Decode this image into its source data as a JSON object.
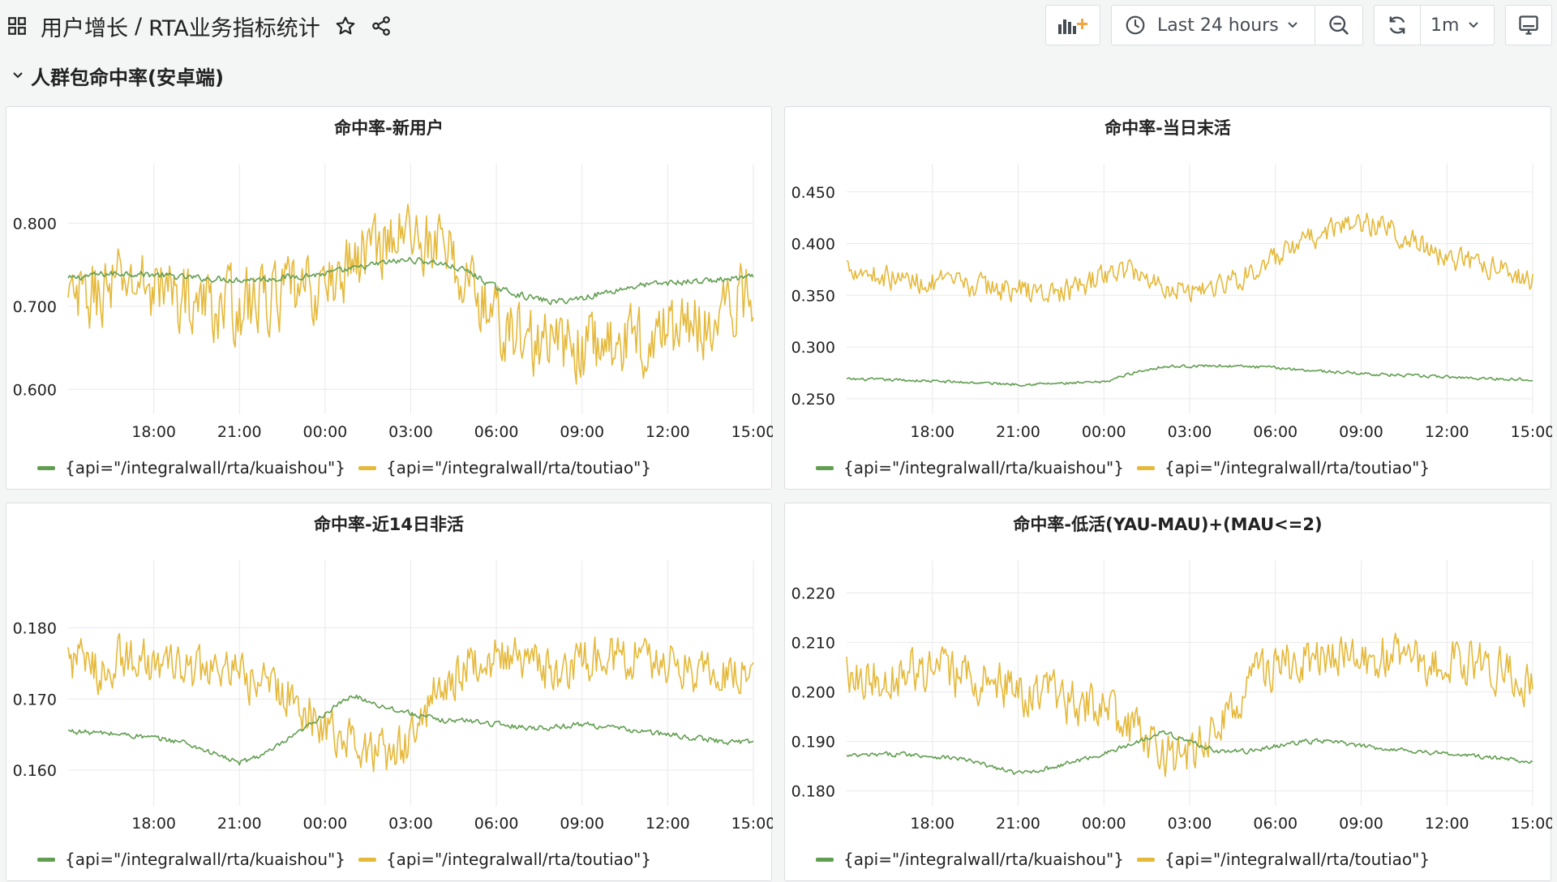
{
  "header": {
    "folder": "用户增长",
    "separator": "/",
    "dashboard": "RTA业务指标统计",
    "time_range": "Last 24 hours",
    "refresh_interval": "1m"
  },
  "row": {
    "title": "人群包命中率(安卓端)"
  },
  "legend": {
    "series_a": "{api=\"/integralwall/rta/kuaishou\"}",
    "series_b": "{api=\"/integralwall/rta/toutiao\"}"
  },
  "colors": {
    "series_a": "#629e51",
    "series_b": "#e5b93a",
    "grid": "#e9e9e9",
    "axis_text": "#222222"
  },
  "x_ticks": [
    "18:00",
    "21:00",
    "00:00",
    "03:00",
    "06:00",
    "09:00",
    "12:00",
    "15:00"
  ],
  "x_range_hours": [
    -24,
    0
  ],
  "chart_data": [
    {
      "type": "line",
      "title": "命中率-新用户",
      "ylim": [
        0.57,
        0.85
      ],
      "yticks": [
        "0.600",
        "0.700",
        "0.800"
      ],
      "ytick_values": [
        0.6,
        0.7,
        0.8
      ],
      "series": [
        {
          "name": "{api=\"/integralwall/rta/kuaishou\"}",
          "anchors": [
            [
              -24,
              0.733
            ],
            [
              -23,
              0.738
            ],
            [
              -22,
              0.74
            ],
            [
              -21,
              0.738
            ],
            [
              -20,
              0.735
            ],
            [
              -19,
              0.733
            ],
            [
              -18,
              0.732
            ],
            [
              -17,
              0.733
            ],
            [
              -16,
              0.736
            ],
            [
              -15,
              0.739
            ],
            [
              -14,
              0.745
            ],
            [
              -13,
              0.752
            ],
            [
              -12,
              0.756
            ],
            [
              -11,
              0.752
            ],
            [
              -10,
              0.742
            ],
            [
              -9,
              0.722
            ],
            [
              -8,
              0.712
            ],
            [
              -7,
              0.705
            ],
            [
              -6,
              0.71
            ],
            [
              -5,
              0.718
            ],
            [
              -4,
              0.725
            ],
            [
              -3,
              0.728
            ],
            [
              -2,
              0.73
            ],
            [
              -1,
              0.732
            ],
            [
              0,
              0.735
            ]
          ],
          "noise": 0.004
        },
        {
          "name": "{api=\"/integralwall/rta/toutiao\"}",
          "anchors": [
            [
              -24,
              0.7
            ],
            [
              -23,
              0.715
            ],
            [
              -22,
              0.73
            ],
            [
              -21,
              0.725
            ],
            [
              -20,
              0.71
            ],
            [
              -19,
              0.7
            ],
            [
              -18,
              0.7
            ],
            [
              -17,
              0.71
            ],
            [
              -16,
              0.715
            ],
            [
              -15,
              0.72
            ],
            [
              -14,
              0.755
            ],
            [
              -13,
              0.78
            ],
            [
              -12,
              0.79
            ],
            [
              -11,
              0.77
            ],
            [
              -10,
              0.73
            ],
            [
              -9,
              0.68
            ],
            [
              -8,
              0.66
            ],
            [
              -7,
              0.65
            ],
            [
              -6,
              0.65
            ],
            [
              -5,
              0.655
            ],
            [
              -4,
              0.66
            ],
            [
              -3,
              0.67
            ],
            [
              -2,
              0.68
            ],
            [
              -1,
              0.69
            ],
            [
              0,
              0.72
            ]
          ],
          "noise": 0.045
        }
      ]
    },
    {
      "type": "line",
      "title": "命中率-当日末活",
      "ylim": [
        0.235,
        0.46
      ],
      "yticks": [
        "0.250",
        "0.300",
        "0.350",
        "0.400",
        "0.450"
      ],
      "ytick_values": [
        0.25,
        0.3,
        0.35,
        0.4,
        0.45
      ],
      "series": [
        {
          "name": "{api=\"/integralwall/rta/kuaishou\"}",
          "anchors": [
            [
              -24,
              0.269
            ],
            [
              -22,
              0.268
            ],
            [
              -20,
              0.266
            ],
            [
              -18,
              0.264
            ],
            [
              -16,
              0.265
            ],
            [
              -15,
              0.266
            ],
            [
              -14,
              0.275
            ],
            [
              -13,
              0.281
            ],
            [
              -11,
              0.282
            ],
            [
              -9,
              0.28
            ],
            [
              -7,
              0.276
            ],
            [
              -5,
              0.273
            ],
            [
              -3,
              0.271
            ],
            [
              -1,
              0.269
            ],
            [
              0,
              0.269
            ]
          ],
          "noise": 0.0015
        },
        {
          "name": "{api=\"/integralwall/rta/toutiao\"}",
          "anchors": [
            [
              -24,
              0.38
            ],
            [
              -23,
              0.37
            ],
            [
              -22,
              0.365
            ],
            [
              -21,
              0.362
            ],
            [
              -20,
              0.36
            ],
            [
              -19,
              0.358
            ],
            [
              -18,
              0.355
            ],
            [
              -17,
              0.352
            ],
            [
              -16,
              0.355
            ],
            [
              -15,
              0.37
            ],
            [
              -14,
              0.375
            ],
            [
              -13,
              0.36
            ],
            [
              -12,
              0.355
            ],
            [
              -11,
              0.36
            ],
            [
              -10,
              0.37
            ],
            [
              -9,
              0.385
            ],
            [
              -8,
              0.4
            ],
            [
              -7,
              0.415
            ],
            [
              -6,
              0.42
            ],
            [
              -5,
              0.415
            ],
            [
              -4,
              0.4
            ],
            [
              -3,
              0.385
            ],
            [
              -2,
              0.38
            ],
            [
              -1,
              0.375
            ],
            [
              0,
              0.365
            ]
          ],
          "noise": 0.012
        }
      ]
    },
    {
      "type": "line",
      "title": "命中率-近14日非活",
      "ylim": [
        0.155,
        0.187
      ],
      "yticks": [
        "0.160",
        "0.170",
        "0.180"
      ],
      "ytick_values": [
        0.16,
        0.17,
        0.18
      ],
      "series": [
        {
          "name": "{api=\"/integralwall/rta/kuaishou\"}",
          "anchors": [
            [
              -24,
              0.1655
            ],
            [
              -22,
              0.165
            ],
            [
              -20,
              0.164
            ],
            [
              -19,
              0.1625
            ],
            [
              -18,
              0.161
            ],
            [
              -17,
              0.1625
            ],
            [
              -16,
              0.165
            ],
            [
              -15,
              0.168
            ],
            [
              -14,
              0.1705
            ],
            [
              -13,
              0.169
            ],
            [
              -12,
              0.168
            ],
            [
              -11,
              0.167
            ],
            [
              -10,
              0.167
            ],
            [
              -9,
              0.1665
            ],
            [
              -8,
              0.166
            ],
            [
              -7,
              0.166
            ],
            [
              -6,
              0.1665
            ],
            [
              -5,
              0.166
            ],
            [
              -4,
              0.1655
            ],
            [
              -3,
              0.165
            ],
            [
              -2,
              0.1645
            ],
            [
              -1,
              0.164
            ],
            [
              0,
              0.164
            ]
          ],
          "noise": 0.0004
        },
        {
          "name": "{api=\"/integralwall/rta/toutiao\"}",
          "anchors": [
            [
              -24,
              0.176
            ],
            [
              -23,
              0.174
            ],
            [
              -22,
              0.176
            ],
            [
              -21,
              0.175
            ],
            [
              -20,
              0.174
            ],
            [
              -19,
              0.174
            ],
            [
              -18,
              0.173
            ],
            [
              -17,
              0.172
            ],
            [
              -16,
              0.17
            ],
            [
              -15,
              0.166
            ],
            [
              -14,
              0.164
            ],
            [
              -13,
              0.162
            ],
            [
              -12,
              0.164
            ],
            [
              -11,
              0.172
            ],
            [
              -10,
              0.175
            ],
            [
              -9,
              0.176
            ],
            [
              -8,
              0.175
            ],
            [
              -7,
              0.174
            ],
            [
              -6,
              0.175
            ],
            [
              -5,
              0.176
            ],
            [
              -4,
              0.176
            ],
            [
              -3,
              0.175
            ],
            [
              -2,
              0.174
            ],
            [
              -1,
              0.174
            ],
            [
              0,
              0.1745
            ]
          ],
          "noise": 0.0035
        }
      ]
    },
    {
      "type": "line",
      "title": "命中率-低活(YAU-MAU)+(MAU<=2)",
      "ylim": [
        0.177,
        0.223
      ],
      "yticks": [
        "0.180",
        "0.190",
        "0.200",
        "0.210",
        "0.220"
      ],
      "ytick_values": [
        0.18,
        0.19,
        0.2,
        0.21,
        0.22
      ],
      "series": [
        {
          "name": "{api=\"/integralwall/rta/kuaishou\"}",
          "anchors": [
            [
              -24,
              0.187
            ],
            [
              -22,
              0.1875
            ],
            [
              -20,
              0.1865
            ],
            [
              -19,
              0.185
            ],
            [
              -18,
              0.1835
            ],
            [
              -17,
              0.1845
            ],
            [
              -16,
              0.186
            ],
            [
              -15,
              0.1875
            ],
            [
              -14,
              0.1895
            ],
            [
              -13,
              0.192
            ],
            [
              -12,
              0.19
            ],
            [
              -11,
              0.188
            ],
            [
              -10,
              0.188
            ],
            [
              -9,
              0.189
            ],
            [
              -8,
              0.19
            ],
            [
              -7,
              0.19
            ],
            [
              -6,
              0.189
            ],
            [
              -5,
              0.1885
            ],
            [
              -4,
              0.188
            ],
            [
              -3,
              0.1875
            ],
            [
              -2,
              0.187
            ],
            [
              -1,
              0.1865
            ],
            [
              0,
              0.186
            ]
          ],
          "noise": 0.0005
        },
        {
          "name": "{api=\"/integralwall/rta/toutiao\"}",
          "anchors": [
            [
              -24,
              0.205
            ],
            [
              -23,
              0.203
            ],
            [
              -22,
              0.204
            ],
            [
              -21,
              0.204
            ],
            [
              -20,
              0.203
            ],
            [
              -19,
              0.202
            ],
            [
              -18,
              0.2
            ],
            [
              -17,
              0.199
            ],
            [
              -16,
              0.198
            ],
            [
              -15,
              0.196
            ],
            [
              -14,
              0.192
            ],
            [
              -13,
              0.188
            ],
            [
              -12,
              0.187
            ],
            [
              -11,
              0.192
            ],
            [
              -10,
              0.202
            ],
            [
              -9,
              0.205
            ],
            [
              -8,
              0.206
            ],
            [
              -7,
              0.206
            ],
            [
              -6,
              0.207
            ],
            [
              -5,
              0.207
            ],
            [
              -4,
              0.206
            ],
            [
              -3,
              0.206
            ],
            [
              -2,
              0.206
            ],
            [
              -1,
              0.204
            ],
            [
              0,
              0.202
            ]
          ],
          "noise": 0.005
        }
      ]
    }
  ]
}
